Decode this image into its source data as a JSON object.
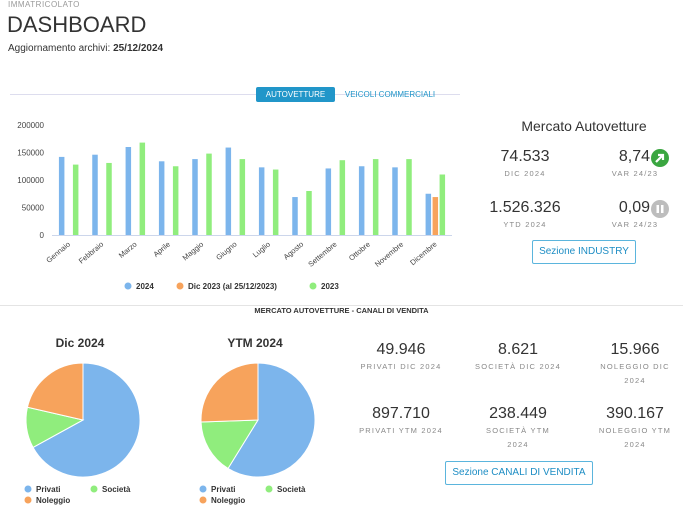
{
  "header": {
    "section": "IMMATRICOLATO",
    "title": "DASHBOARD",
    "update_label": "Aggiornamento archivi:",
    "update_date": "25/12/2024"
  },
  "tabs": [
    "AUTOVETTURE",
    "VEICOLI COMMERCIALI"
  ],
  "market_panel": {
    "title": "Mercato Autovetture",
    "kpis": [
      {
        "value": "74.533",
        "label": "DIC 2024"
      },
      {
        "value": "8,74",
        "label": "VAR 24/23"
      },
      {
        "value": "1.526.326",
        "label": "YTD 2024"
      },
      {
        "value": "0,09",
        "label": "VAR 24/23"
      }
    ],
    "button": "Sezione INDUSTRY"
  },
  "channels": {
    "title": "MERCATO AUTOVETTURE - CANALI DI VENDITA",
    "kpis": [
      {
        "value": "49.946",
        "label": "PRIVATI DIC 2024"
      },
      {
        "value": "8.621",
        "label": "SOCIETÀ DIC 2024"
      },
      {
        "value": "15.966",
        "label": "NOLEGGIO DIC 2024"
      },
      {
        "value": "897.710",
        "label": "PRIVATI YTM 2024"
      },
      {
        "value": "238.449",
        "label": "SOCIETÀ YTM 2024"
      },
      {
        "value": "390.167",
        "label": "NOLEGGIO YTM 2024"
      }
    ],
    "button": "Sezione CANALI DI VENDITA"
  },
  "chart_data": [
    {
      "type": "bar",
      "categories": [
        "Gennaio",
        "Febbraio",
        "Marzo",
        "Aprile",
        "Maggio",
        "Giugno",
        "Luglio",
        "Agosto",
        "Settembre",
        "Ottobre",
        "Novembre",
        "Dicembre"
      ],
      "series": [
        {
          "name": "2024",
          "color": "#7cb5ec",
          "values": [
            142000,
            146000,
            160000,
            134000,
            138000,
            159000,
            123000,
            69000,
            121000,
            125000,
            123000,
            75000
          ]
        },
        {
          "name": "Dic 2023 (al 25/12/2023)",
          "color": "#f7a35c",
          "values": [
            null,
            null,
            null,
            null,
            null,
            null,
            null,
            null,
            null,
            null,
            null,
            69000
          ]
        },
        {
          "name": "2023",
          "color": "#90ed7d",
          "values": [
            128000,
            131000,
            168000,
            125000,
            148000,
            138000,
            119000,
            80000,
            136000,
            138000,
            138000,
            110000
          ]
        }
      ],
      "ylim": [
        0,
        200000
      ],
      "yticks": [
        0,
        50000,
        100000,
        150000,
        200000
      ],
      "grid": false,
      "legend": "bottom"
    },
    {
      "type": "pie",
      "title": "Dic 2024",
      "categories": [
        "Privati",
        "Società",
        "Noleggio"
      ],
      "values": [
        49946,
        8621,
        15966
      ],
      "colors": [
        "#7cb5ec",
        "#90ed7d",
        "#f7a35c"
      ],
      "legend": "bottom"
    },
    {
      "type": "pie",
      "title": "YTM 2024",
      "categories": [
        "Privati",
        "Società",
        "Noleggio"
      ],
      "values": [
        897710,
        238449,
        390167
      ],
      "colors": [
        "#7cb5ec",
        "#90ed7d",
        "#f7a35c"
      ],
      "legend": "bottom"
    }
  ]
}
